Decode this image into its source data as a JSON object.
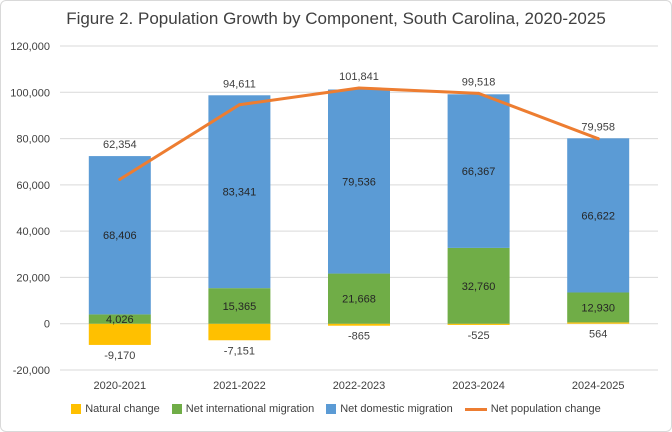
{
  "chart_data": {
    "type": "bar",
    "stacked": true,
    "title": "Figure 2. Population Growth by Component, South Carolina, 2020-2025",
    "categories": [
      "2020-2021",
      "2021-2022",
      "2022-2023",
      "2023-2024",
      "2024-2025"
    ],
    "series": [
      {
        "name": "Natural change",
        "color": "#ffc000",
        "values": [
          -9170,
          -7151,
          -865,
          -525,
          564
        ]
      },
      {
        "name": "Net international migration",
        "color": "#70ad47",
        "values": [
          4026,
          15365,
          21668,
          32760,
          12930
        ]
      },
      {
        "name": "Net domestic migration",
        "color": "#5b9bd5",
        "values": [
          68406,
          83341,
          79536,
          66367,
          66622
        ]
      }
    ],
    "line_series": {
      "name": "Net population change",
      "color": "#ed7d31",
      "values": [
        62354,
        94611,
        101841,
        99518,
        79958
      ]
    },
    "ylim": [
      -20000,
      120000
    ],
    "yticks": [
      -20000,
      0,
      20000,
      40000,
      60000,
      80000,
      100000,
      120000
    ],
    "ytick_labels": [
      "-20,000",
      "0",
      "20,000",
      "40,000",
      "60,000",
      "80,000",
      "100,000",
      "120,000"
    ],
    "data_labels": {
      "Natural change": [
        "-9,170",
        "-7,151",
        "-865",
        "-525",
        "564"
      ],
      "Net international migration": [
        "4,026",
        "15,365",
        "21,668",
        "32,760",
        "12,930"
      ],
      "Net domestic migration": [
        "68,406",
        "83,341",
        "79,536",
        "66,367",
        "66,622"
      ],
      "Net population change": [
        "62,354",
        "94,611",
        "101,841",
        "99,518",
        "79,958"
      ]
    },
    "legend_position": "bottom",
    "grid": true
  }
}
